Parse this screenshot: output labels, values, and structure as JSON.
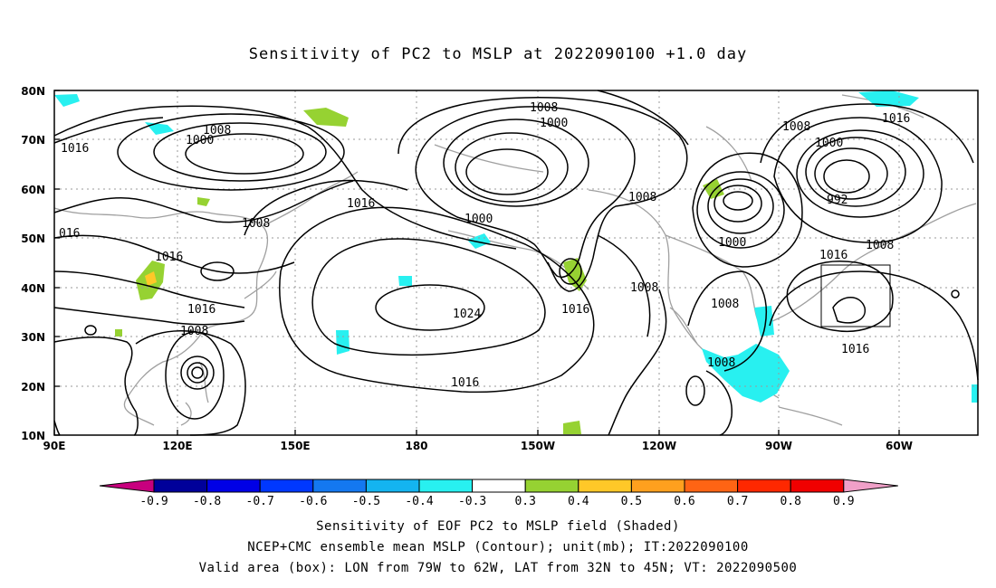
{
  "title": "Sensitivity of PC2 to MSLP at 2022090100 +1.0 day",
  "map": {
    "lat_labels": [
      "80N",
      "70N",
      "60N",
      "50N",
      "40N",
      "30N",
      "20N",
      "10N"
    ],
    "lon_labels": [
      "90E",
      "120E",
      "150E",
      "180",
      "150W",
      "120W",
      "90W",
      "60W"
    ],
    "contour_labels": [
      {
        "text": "1008"
      },
      {
        "text": "1000"
      },
      {
        "text": "1016"
      },
      {
        "text": "1008"
      },
      {
        "text": "1000"
      },
      {
        "text": "1008"
      },
      {
        "text": "1000"
      },
      {
        "text": "1016"
      },
      {
        "text": "1016"
      },
      {
        "text": "1000"
      },
      {
        "text": "1008"
      },
      {
        "text": "992"
      },
      {
        "text": "1008"
      },
      {
        "text": "016"
      },
      {
        "text": "1016"
      },
      {
        "text": "1016"
      },
      {
        "text": "1008"
      },
      {
        "text": "1000"
      },
      {
        "text": "1016"
      },
      {
        "text": "1008"
      },
      {
        "text": "1008"
      },
      {
        "text": "1024"
      },
      {
        "text": "1016"
      },
      {
        "text": "1008"
      },
      {
        "text": "1016"
      },
      {
        "text": "1016"
      },
      {
        "text": "1008"
      }
    ],
    "valid_box": {
      "lon_from": "79W",
      "lon_to": "62W",
      "lat_from": "32N",
      "lat_to": "45N"
    }
  },
  "colorbar": {
    "labels": [
      "-0.9",
      "-0.8",
      "-0.7",
      "-0.6",
      "-0.5",
      "-0.4",
      "-0.3",
      "0.3",
      "0.4",
      "0.5",
      "0.6",
      "0.7",
      "0.8",
      "0.9"
    ],
    "colors": [
      "#c8007e",
      "#00009a",
      "#0000e6",
      "#0038ff",
      "#1478f0",
      "#14b4f0",
      "#28f0f0",
      "#ffffff",
      "#96d232",
      "#ffc828",
      "#ffa01e",
      "#ff6414",
      "#ff2800",
      "#f00000",
      "#f0a0c8"
    ]
  },
  "captions": [
    "Sensitivity of EOF PC2 to MSLP field (Shaded)",
    "NCEP+CMC ensemble mean MSLP (Contour); unit(mb); IT:2022090100",
    "Valid area (box): LON from 79W to 62W, LAT from 32N to 45N; VT: 2022090500"
  ]
}
